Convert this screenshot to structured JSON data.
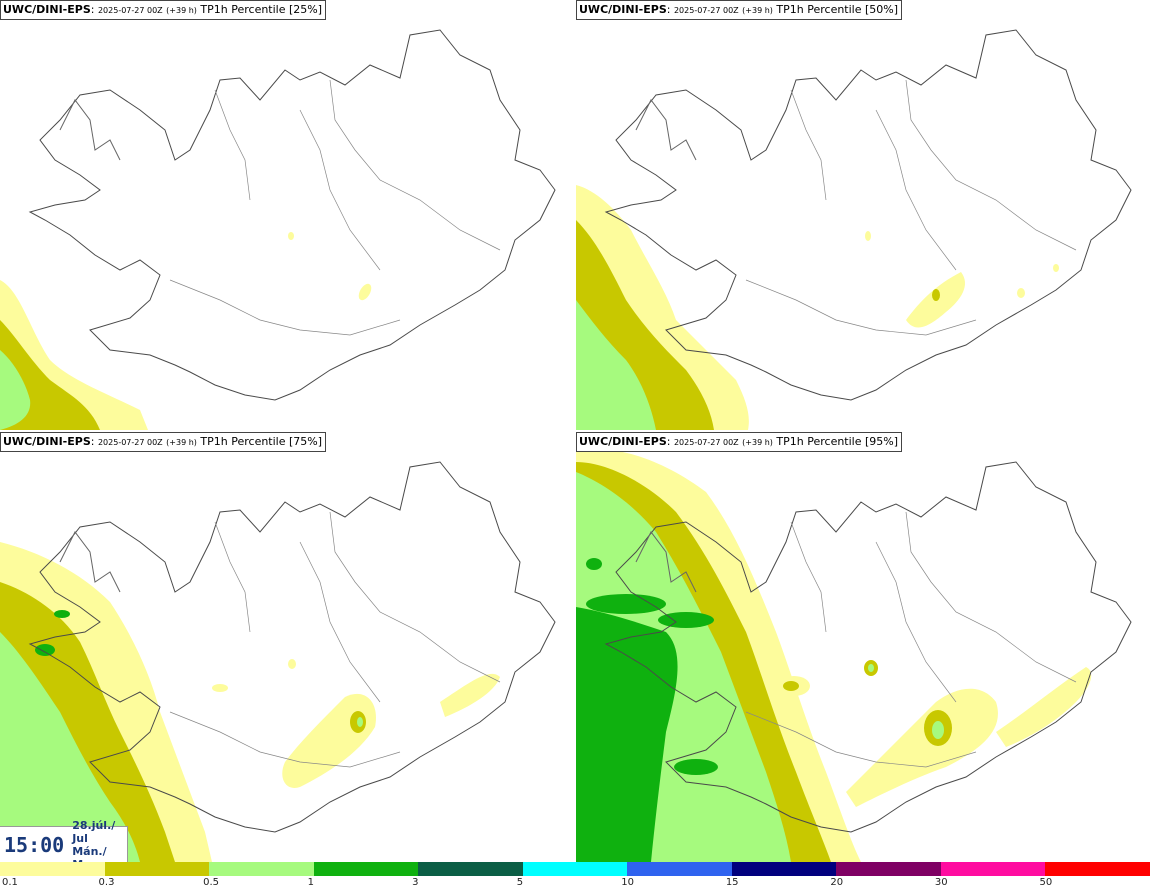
{
  "panels": [
    {
      "model": "UWC/DINI-EPS",
      "run": "2025-07-27 00Z",
      "lead": "(+39 h)",
      "variable": "TP1h Percentile",
      "percentile": "[25%]"
    },
    {
      "model": "UWC/DINI-EPS",
      "run": "2025-07-27 00Z",
      "lead": "(+39 h)",
      "variable": "TP1h Percentile",
      "percentile": "[50%]"
    },
    {
      "model": "UWC/DINI-EPS",
      "run": "2025-07-27 00Z",
      "lead": "(+39 h)",
      "variable": "TP1h Percentile",
      "percentile": "[75%]"
    },
    {
      "model": "UWC/DINI-EPS",
      "run": "2025-07-27 00Z",
      "lead": "(+39 h)",
      "variable": "TP1h Percentile",
      "percentile": "[95%]"
    }
  ],
  "time": {
    "clock": "15:00",
    "date_line1": "28.júl./ Jul",
    "date_line2": "Mán./ Mon"
  },
  "colorbar": {
    "colors": [
      "#fdfc9c",
      "#c8c800",
      "#a6fa7e",
      "#0fb10f",
      "#0b5e45",
      "#00ffff",
      "#2f63ef",
      "#01007e",
      "#7f0064",
      "#ff0ca0",
      "#ff0000"
    ],
    "labels": [
      "0.1",
      "0.3",
      "0.5",
      "1",
      "3",
      "5",
      "10",
      "15",
      "20",
      "30",
      "50"
    ]
  }
}
